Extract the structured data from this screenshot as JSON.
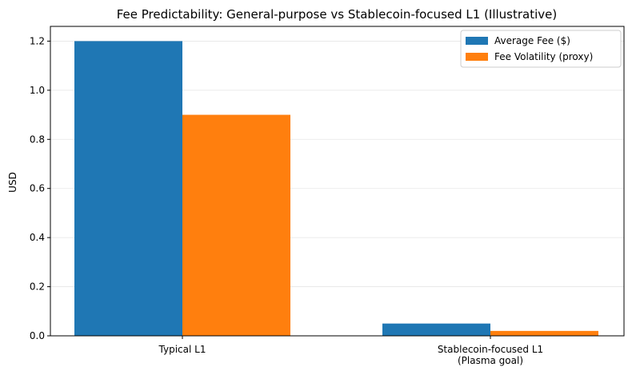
{
  "chart_data": {
    "type": "bar",
    "title": "Fee Predictability: General-purpose vs Stablecoin-focused L1 (Illustrative)",
    "y_label": "USD",
    "categories": [
      "Typical L1",
      "Stablecoin-focused L1\n(Plasma goal)"
    ],
    "series": [
      {
        "name": "Average Fee ($)",
        "color": "#1f77b4",
        "values": [
          1.2,
          0.05
        ]
      },
      {
        "name": "Fee Volatility (proxy)",
        "color": "#ff7f0e",
        "values": [
          0.9,
          0.02
        ]
      }
    ],
    "ylim": [
      0,
      1.26
    ],
    "yticks": [
      {
        "value": 0,
        "label": "0.0"
      },
      {
        "value": 0.2,
        "label": "0.2"
      },
      {
        "value": 0.4,
        "label": "0.4"
      },
      {
        "value": 0.6,
        "label": "0.6"
      },
      {
        "value": 0.8,
        "label": "0.8"
      },
      {
        "value": 1.0,
        "label": "1.0"
      },
      {
        "value": 1.2,
        "label": "1.2"
      }
    ],
    "grid": true,
    "legend": "upper right"
  }
}
